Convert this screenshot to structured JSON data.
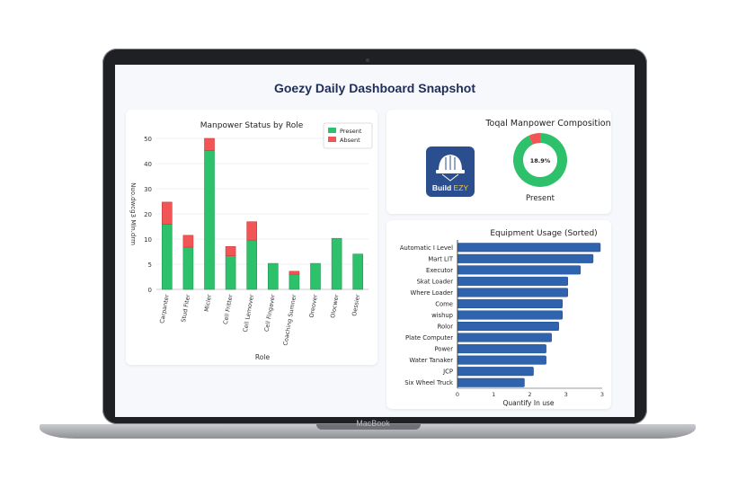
{
  "device": {
    "brand_label": "MacBook"
  },
  "dashboard": {
    "title": "Goezy Daily Dashboard Snapshot",
    "logo": {
      "text_a": "Build ",
      "text_b": "EZY",
      "icon": "hard-hat-icon"
    }
  },
  "colors": {
    "present": "#2ec16b",
    "absent": "#f25555",
    "equipment": "#2f63ad",
    "title": "#1f2d57"
  },
  "chart_data": [
    {
      "type": "bar",
      "stacked": true,
      "title": "Manpower Status by Role",
      "xlabel": "Role",
      "ylabel": "Nuo.dwcg3 Mln.drm",
      "ylim": [
        0,
        50
      ],
      "ytick_labels": [
        "0",
        "5",
        "10",
        "20",
        "30",
        "40",
        "50"
      ],
      "grid": true,
      "legend": "top-right",
      "categories": [
        "Carpanter",
        "Stud Fiter",
        "Micler",
        "Cell Fritter",
        "Cell Lemover",
        "Cell Fingaver",
        "Coaching Sumner",
        "Oreover",
        "Olocwer",
        "Oessier"
      ],
      "series": [
        {
          "name": "Present",
          "values": [
            21.6,
            14.0,
            46.0,
            11.1,
            16.3,
            8.6,
            5.0,
            8.6,
            16.9,
            11.7
          ]
        },
        {
          "name": "Absent",
          "values": [
            7.3,
            3.9,
            4.0,
            3.1,
            6.1,
            0,
            1.0,
            0,
            0,
            0
          ]
        }
      ]
    },
    {
      "type": "pie",
      "donut": true,
      "title": "Toqal Manpower Composition",
      "center_label": "18.9%",
      "legend_label": "Present",
      "slices": [
        {
          "name": "Present",
          "value": 93
        },
        {
          "name": "Absent",
          "value": 7
        }
      ]
    },
    {
      "type": "bar",
      "orientation": "horizontal",
      "title": "Equipment Usage (Sorted)",
      "xlabel": "Quantify In use",
      "xlim": [
        0,
        4
      ],
      "xtick_labels": [
        "0",
        "1",
        "2",
        "3",
        "3"
      ],
      "categories": [
        "Automatic I Level",
        "Mart LIT",
        "Executor",
        "Skat Loader",
        "Where Loader",
        "Come",
        "wishup",
        "Rolor",
        "Plate Computer",
        "Power",
        "Water Tanaker",
        "JCP",
        "Six Wheel Truck"
      ],
      "values": [
        3.95,
        3.75,
        3.4,
        3.05,
        3.05,
        2.9,
        2.9,
        2.8,
        2.6,
        2.45,
        2.45,
        2.1,
        1.85
      ]
    }
  ]
}
